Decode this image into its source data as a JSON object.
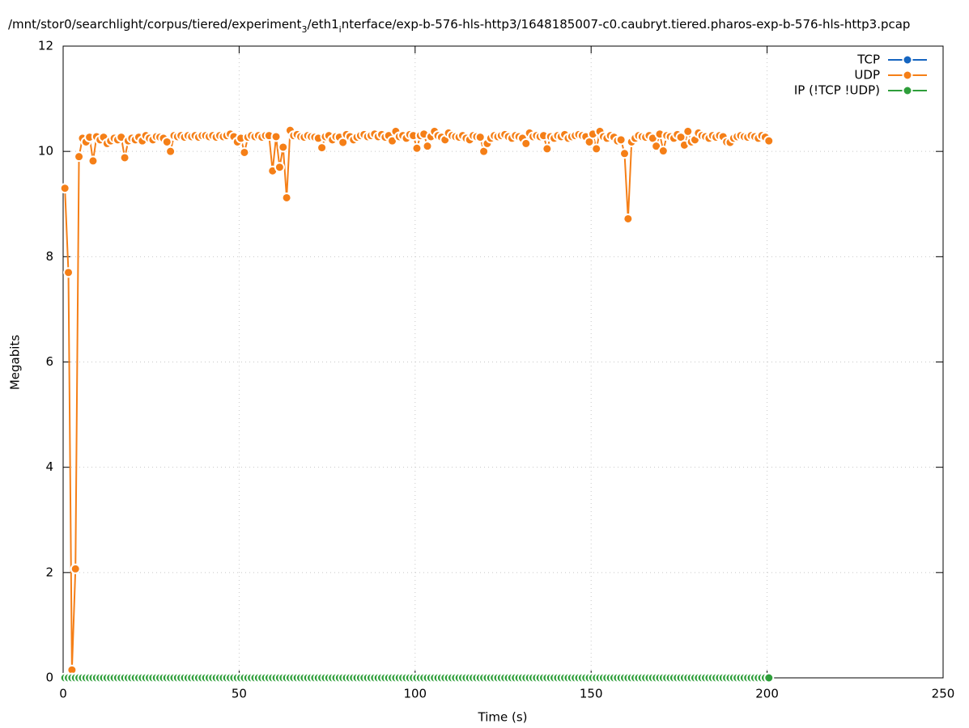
{
  "chart_data": {
    "type": "line",
    "title": [
      "/mnt/stor0/searchlight/corpus/tiered/experiment",
      "3",
      "/eth1",
      "i",
      "nterface/exp-b-576-hls-http3/1648185007-c0.caubryt.tiered.pharos-exp-b-576-hls-http3.pcap"
    ],
    "xlabel": "Time (s)",
    "ylabel": "Megabits",
    "xlim": [
      0,
      250
    ],
    "xticks": [
      0,
      50,
      100,
      150,
      200,
      250
    ],
    "ylim": [
      0,
      12
    ],
    "yticks": [
      0,
      2,
      4,
      6,
      8,
      10,
      12
    ],
    "grid": true,
    "legend": "top-right",
    "x": [
      0.5,
      1.5,
      2.5,
      3.5,
      4.5,
      5.5,
      6.5,
      7.5,
      8.5,
      9.5,
      10.5,
      11.5,
      12.5,
      13.5,
      14.5,
      15.5,
      16.5,
      17.5,
      18.5,
      19.5,
      20.5,
      21.5,
      22.5,
      23.5,
      24.5,
      25.5,
      26.5,
      27.5,
      28.5,
      29.5,
      30.5,
      31.5,
      32.5,
      33.5,
      34.5,
      35.5,
      36.5,
      37.5,
      38.5,
      39.5,
      40.5,
      41.5,
      42.5,
      43.5,
      44.5,
      45.5,
      46.5,
      47.5,
      48.5,
      49.5,
      50.5,
      51.5,
      52.5,
      53.5,
      54.5,
      55.5,
      56.5,
      57.5,
      58.5,
      59.5,
      60.5,
      61.5,
      62.5,
      63.5,
      64.5,
      65.5,
      66.5,
      67.5,
      68.5,
      69.5,
      70.5,
      71.5,
      72.5,
      73.5,
      74.5,
      75.5,
      76.5,
      77.5,
      78.5,
      79.5,
      80.5,
      81.5,
      82.5,
      83.5,
      84.5,
      85.5,
      86.5,
      87.5,
      88.5,
      89.5,
      90.5,
      91.5,
      92.5,
      93.5,
      94.5,
      95.5,
      96.5,
      97.5,
      98.5,
      99.5,
      100.5,
      101.5,
      102.5,
      103.5,
      104.5,
      105.5,
      106.5,
      107.5,
      108.5,
      109.5,
      110.5,
      111.5,
      112.5,
      113.5,
      114.5,
      115.5,
      116.5,
      117.5,
      118.5,
      119.5,
      120.5,
      121.5,
      122.5,
      123.5,
      124.5,
      125.5,
      126.5,
      127.5,
      128.5,
      129.5,
      130.5,
      131.5,
      132.5,
      133.5,
      134.5,
      135.5,
      136.5,
      137.5,
      138.5,
      139.5,
      140.5,
      141.5,
      142.5,
      143.5,
      144.5,
      145.5,
      146.5,
      147.5,
      148.5,
      149.5,
      150.5,
      151.5,
      152.5,
      153.5,
      154.5,
      155.5,
      156.5,
      157.5,
      158.5,
      159.5,
      160.5,
      161.5,
      162.5,
      163.5,
      164.5,
      165.5,
      166.5,
      167.5,
      168.5,
      169.5,
      170.5,
      171.5,
      172.5,
      173.5,
      174.5,
      175.5,
      176.5,
      177.5,
      178.5,
      179.5,
      180.5,
      181.5,
      182.5,
      183.5,
      184.5,
      185.5,
      186.5,
      187.5,
      188.5,
      189.5,
      190.5,
      191.5,
      192.5,
      193.5,
      194.5,
      195.5,
      196.5,
      197.5,
      198.5,
      199.5,
      200.5
    ],
    "series": [
      {
        "name": "TCP",
        "color": "#1565c0"
      },
      {
        "name": "UDP",
        "color": "#f57f17",
        "values": [
          9.3,
          7.7,
          0.15,
          2.07,
          9.9,
          10.25,
          10.18,
          10.27,
          9.82,
          10.28,
          10.22,
          10.27,
          10.15,
          10.2,
          10.25,
          10.22,
          10.27,
          9.88,
          10.2,
          10.25,
          10.22,
          10.27,
          10.2,
          10.3,
          10.25,
          10.22,
          10.28,
          10.27,
          10.25,
          10.18,
          10.0,
          10.3,
          10.28,
          10.3,
          10.27,
          10.3,
          10.28,
          10.3,
          10.27,
          10.3,
          10.3,
          10.28,
          10.3,
          10.27,
          10.3,
          10.28,
          10.3,
          10.33,
          10.28,
          10.18,
          10.25,
          9.98,
          10.27,
          10.3,
          10.28,
          10.3,
          10.27,
          10.3,
          10.3,
          9.63,
          10.28,
          9.7,
          10.08,
          9.12,
          10.4,
          10.3,
          10.32,
          10.28,
          10.27,
          10.3,
          10.28,
          10.27,
          10.25,
          10.07,
          10.28,
          10.3,
          10.22,
          10.28,
          10.27,
          10.17,
          10.32,
          10.28,
          10.22,
          10.27,
          10.3,
          10.32,
          10.28,
          10.3,
          10.33,
          10.28,
          10.32,
          10.27,
          10.3,
          10.2,
          10.38,
          10.28,
          10.3,
          10.25,
          10.32,
          10.3,
          10.06,
          10.3,
          10.33,
          10.1,
          10.28,
          10.38,
          10.3,
          10.27,
          10.22,
          10.35,
          10.3,
          10.28,
          10.27,
          10.3,
          10.25,
          10.22,
          10.3,
          10.28,
          10.27,
          10.0,
          10.15,
          10.25,
          10.3,
          10.28,
          10.3,
          10.32,
          10.28,
          10.25,
          10.3,
          10.28,
          10.25,
          10.15,
          10.35,
          10.28,
          10.3,
          10.28,
          10.3,
          10.05,
          10.28,
          10.25,
          10.3,
          10.28,
          10.32,
          10.25,
          10.28,
          10.3,
          10.32,
          10.3,
          10.28,
          10.18,
          10.33,
          10.05,
          10.38,
          10.28,
          10.25,
          10.3,
          10.27,
          10.2,
          10.22,
          9.96,
          8.72,
          10.18,
          10.25,
          10.3,
          10.28,
          10.27,
          10.3,
          10.25,
          10.1,
          10.33,
          10.01,
          10.3,
          10.28,
          10.25,
          10.32,
          10.27,
          10.12,
          10.38,
          10.18,
          10.22,
          10.35,
          10.3,
          10.28,
          10.25,
          10.3,
          10.27,
          10.3,
          10.28,
          10.18,
          10.17,
          10.25,
          10.28,
          10.3,
          10.28,
          10.27,
          10.3,
          10.28,
          10.25,
          10.3,
          10.27,
          10.2
        ]
      },
      {
        "name": "IP (!TCP  !UDP)",
        "color": "#2e9e3a",
        "values": [
          0,
          0,
          0,
          0,
          0,
          0,
          0,
          0,
          0,
          0,
          0,
          0,
          0,
          0,
          0,
          0,
          0,
          0,
          0,
          0,
          0,
          0,
          0,
          0,
          0,
          0,
          0,
          0,
          0,
          0,
          0,
          0,
          0,
          0,
          0,
          0,
          0,
          0,
          0,
          0,
          0,
          0,
          0,
          0,
          0,
          0,
          0,
          0,
          0,
          0,
          0,
          0,
          0,
          0,
          0,
          0,
          0,
          0,
          0,
          0,
          0,
          0,
          0,
          0,
          0,
          0,
          0,
          0,
          0,
          0,
          0,
          0,
          0,
          0,
          0,
          0,
          0,
          0,
          0,
          0,
          0,
          0,
          0,
          0,
          0,
          0,
          0,
          0,
          0,
          0,
          0,
          0,
          0,
          0,
          0,
          0,
          0,
          0,
          0,
          0,
          0,
          0,
          0,
          0,
          0,
          0,
          0,
          0,
          0,
          0,
          0,
          0,
          0,
          0,
          0,
          0,
          0,
          0,
          0,
          0,
          0,
          0,
          0,
          0,
          0,
          0,
          0,
          0,
          0,
          0,
          0,
          0,
          0,
          0,
          0,
          0,
          0,
          0,
          0,
          0,
          0,
          0,
          0,
          0,
          0,
          0,
          0,
          0,
          0,
          0,
          0,
          0,
          0,
          0,
          0,
          0,
          0,
          0,
          0,
          0,
          0,
          0,
          0,
          0,
          0,
          0,
          0,
          0,
          0,
          0,
          0,
          0,
          0,
          0,
          0,
          0,
          0,
          0,
          0,
          0,
          0,
          0,
          0,
          0,
          0,
          0,
          0,
          0,
          0,
          0,
          0,
          0,
          0,
          0,
          0,
          0,
          0,
          0,
          0,
          0,
          0
        ]
      }
    ]
  }
}
